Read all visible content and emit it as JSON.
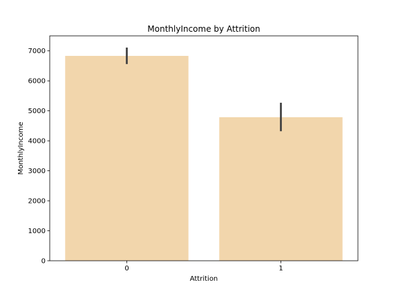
{
  "colors": {
    "bar_fill": "#F2D6AC",
    "error_bar": "#404040",
    "axes_frame": "#000000",
    "background": "#ffffff"
  },
  "chart_data": {
    "type": "bar",
    "title": "MonthlyIncome by Attrition",
    "xlabel": "Attrition",
    "ylabel": "MonthlyIncome",
    "categories": [
      "0",
      "1"
    ],
    "values": [
      6833,
      4787
    ],
    "error_low": [
      6560,
      4320
    ],
    "error_high": [
      7110,
      5270
    ],
    "ylim": [
      0,
      7500
    ],
    "yticks": [
      0,
      1000,
      2000,
      3000,
      4000,
      5000,
      6000,
      7000
    ],
    "ytick_labels": [
      "0",
      "1000",
      "2000",
      "3000",
      "4000",
      "5000",
      "6000",
      "7000"
    ],
    "grid": false,
    "legend": "none"
  }
}
